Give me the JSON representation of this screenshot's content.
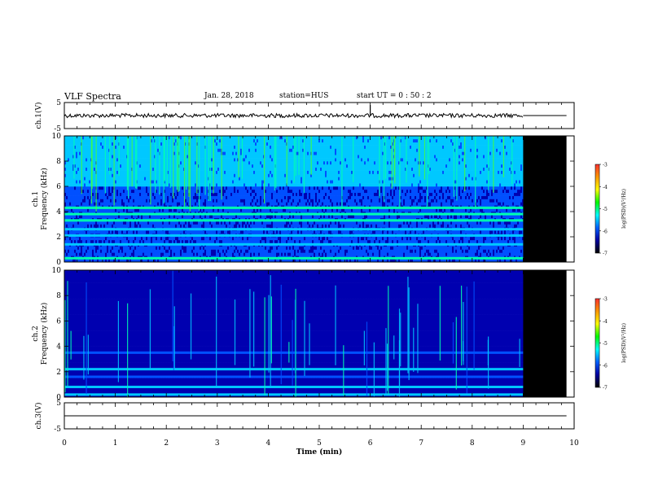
{
  "header": {
    "title": "VLF Spectra",
    "date": "Jan. 28, 2018",
    "station": "station=HUS",
    "start_ut": "start  UT  =   0 : 50 : 2"
  },
  "colorbar": {
    "label": "log(PSD)(V²/Hz)",
    "ticks": [
      "-3",
      "-4",
      "-5",
      "-6",
      "-7"
    ],
    "colors": [
      "#ff3030",
      "#ff9900",
      "#ffff00",
      "#00ff00",
      "#00ffff",
      "#0060ff",
      "#0000a0",
      "#000000"
    ]
  },
  "chart_data": [
    {
      "type": "line",
      "panel": "ch1-waveform",
      "ylabel": "ch.1(V)",
      "yticks": [
        "5",
        "-5"
      ],
      "ylim": [
        -5,
        5
      ],
      "x": [
        0,
        9,
        9.85
      ],
      "y": [
        0,
        0,
        0
      ],
      "note_text": ""
    },
    {
      "type": "heatmap",
      "panel": "ch1-spectrogram",
      "ylabel": "ch.1 Frequency (kHz)",
      "yticks": [
        "0",
        "2",
        "4",
        "6",
        "8",
        "10"
      ],
      "ylim": [
        0,
        10
      ],
      "xlim": [
        0,
        10
      ],
      "data_end_min": 9.0,
      "no_data_color": "#000000",
      "bands_khz": [
        {
          "f": 0.3,
          "level": 0.72
        },
        {
          "f": 1.4,
          "level": 0.55
        },
        {
          "f": 2.1,
          "level": 0.58
        },
        {
          "f": 2.6,
          "level": 0.55
        },
        {
          "f": 3.3,
          "level": 0.68
        },
        {
          "f": 3.8,
          "level": 0.7
        },
        {
          "f": 4.3,
          "level": 0.75
        }
      ],
      "upper_band_khz": [
        6.0,
        10.0
      ]
    },
    {
      "type": "heatmap",
      "panel": "ch2-spectrogram",
      "ylabel": "ch.2 Frequency (kHz)",
      "yticks": [
        "0",
        "2",
        "4",
        "6",
        "8",
        "10"
      ],
      "ylim": [
        0,
        10
      ],
      "xlim": [
        0,
        10
      ],
      "data_end_min": 9.0,
      "no_data_color": "#000000",
      "bands_khz": [
        {
          "f": 0.2,
          "level": 0.5
        },
        {
          "f": 0.8,
          "level": 0.45
        },
        {
          "f": 1.6,
          "level": 0.4
        },
        {
          "f": 2.2,
          "level": 0.45
        },
        {
          "f": 3.5,
          "level": 0.3
        }
      ]
    },
    {
      "type": "line",
      "panel": "ch3-waveform",
      "ylabel": "ch.3(V)",
      "yticks": [
        "5",
        "-5"
      ],
      "ylim": [
        -5,
        5
      ],
      "x": [
        0,
        9.85
      ],
      "y": [
        0,
        0
      ],
      "xlabel": "Time (min)",
      "xticks": [
        "0",
        "1",
        "2",
        "3",
        "4",
        "5",
        "6",
        "7",
        "8",
        "9",
        "10"
      ],
      "xlim": [
        0,
        10
      ]
    }
  ]
}
